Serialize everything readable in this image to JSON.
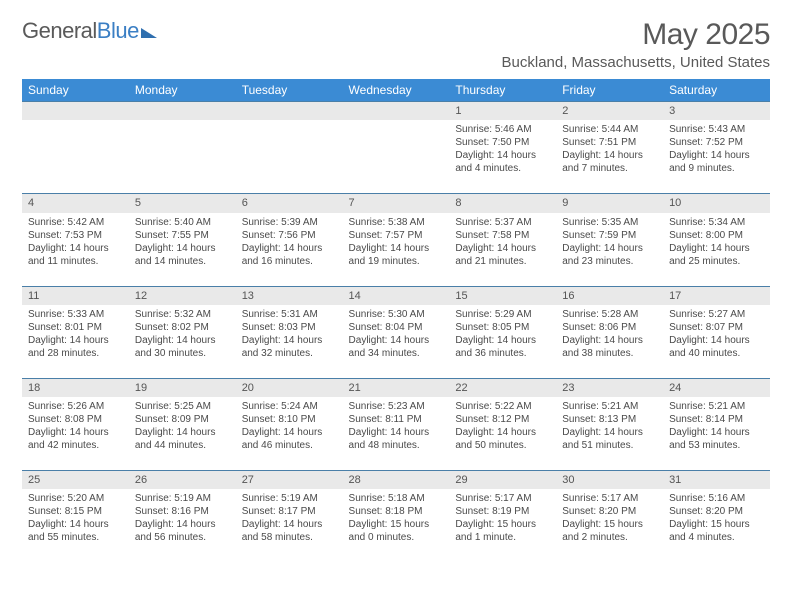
{
  "logo": {
    "part1": "General",
    "part2": "Blue"
  },
  "title": "May 2025",
  "location": "Buckland, Massachusetts, United States",
  "day_headers": [
    "Sunday",
    "Monday",
    "Tuesday",
    "Wednesday",
    "Thursday",
    "Friday",
    "Saturday"
  ],
  "colors": {
    "header_bg": "#3b8bd4",
    "header_text": "#ffffff",
    "daynum_bg": "#e9e9e9",
    "row_border": "#4a7fa8",
    "text": "#4a4a4a",
    "title_text": "#595959"
  },
  "weeks": [
    {
      "nums": [
        "",
        "",
        "",
        "",
        "1",
        "2",
        "3"
      ],
      "cells": [
        null,
        null,
        null,
        null,
        {
          "sunrise": "Sunrise: 5:46 AM",
          "sunset": "Sunset: 7:50 PM",
          "daylight": "Daylight: 14 hours and 4 minutes."
        },
        {
          "sunrise": "Sunrise: 5:44 AM",
          "sunset": "Sunset: 7:51 PM",
          "daylight": "Daylight: 14 hours and 7 minutes."
        },
        {
          "sunrise": "Sunrise: 5:43 AM",
          "sunset": "Sunset: 7:52 PM",
          "daylight": "Daylight: 14 hours and 9 minutes."
        }
      ]
    },
    {
      "nums": [
        "4",
        "5",
        "6",
        "7",
        "8",
        "9",
        "10"
      ],
      "cells": [
        {
          "sunrise": "Sunrise: 5:42 AM",
          "sunset": "Sunset: 7:53 PM",
          "daylight": "Daylight: 14 hours and 11 minutes."
        },
        {
          "sunrise": "Sunrise: 5:40 AM",
          "sunset": "Sunset: 7:55 PM",
          "daylight": "Daylight: 14 hours and 14 minutes."
        },
        {
          "sunrise": "Sunrise: 5:39 AM",
          "sunset": "Sunset: 7:56 PM",
          "daylight": "Daylight: 14 hours and 16 minutes."
        },
        {
          "sunrise": "Sunrise: 5:38 AM",
          "sunset": "Sunset: 7:57 PM",
          "daylight": "Daylight: 14 hours and 19 minutes."
        },
        {
          "sunrise": "Sunrise: 5:37 AM",
          "sunset": "Sunset: 7:58 PM",
          "daylight": "Daylight: 14 hours and 21 minutes."
        },
        {
          "sunrise": "Sunrise: 5:35 AM",
          "sunset": "Sunset: 7:59 PM",
          "daylight": "Daylight: 14 hours and 23 minutes."
        },
        {
          "sunrise": "Sunrise: 5:34 AM",
          "sunset": "Sunset: 8:00 PM",
          "daylight": "Daylight: 14 hours and 25 minutes."
        }
      ]
    },
    {
      "nums": [
        "11",
        "12",
        "13",
        "14",
        "15",
        "16",
        "17"
      ],
      "cells": [
        {
          "sunrise": "Sunrise: 5:33 AM",
          "sunset": "Sunset: 8:01 PM",
          "daylight": "Daylight: 14 hours and 28 minutes."
        },
        {
          "sunrise": "Sunrise: 5:32 AM",
          "sunset": "Sunset: 8:02 PM",
          "daylight": "Daylight: 14 hours and 30 minutes."
        },
        {
          "sunrise": "Sunrise: 5:31 AM",
          "sunset": "Sunset: 8:03 PM",
          "daylight": "Daylight: 14 hours and 32 minutes."
        },
        {
          "sunrise": "Sunrise: 5:30 AM",
          "sunset": "Sunset: 8:04 PM",
          "daylight": "Daylight: 14 hours and 34 minutes."
        },
        {
          "sunrise": "Sunrise: 5:29 AM",
          "sunset": "Sunset: 8:05 PM",
          "daylight": "Daylight: 14 hours and 36 minutes."
        },
        {
          "sunrise": "Sunrise: 5:28 AM",
          "sunset": "Sunset: 8:06 PM",
          "daylight": "Daylight: 14 hours and 38 minutes."
        },
        {
          "sunrise": "Sunrise: 5:27 AM",
          "sunset": "Sunset: 8:07 PM",
          "daylight": "Daylight: 14 hours and 40 minutes."
        }
      ]
    },
    {
      "nums": [
        "18",
        "19",
        "20",
        "21",
        "22",
        "23",
        "24"
      ],
      "cells": [
        {
          "sunrise": "Sunrise: 5:26 AM",
          "sunset": "Sunset: 8:08 PM",
          "daylight": "Daylight: 14 hours and 42 minutes."
        },
        {
          "sunrise": "Sunrise: 5:25 AM",
          "sunset": "Sunset: 8:09 PM",
          "daylight": "Daylight: 14 hours and 44 minutes."
        },
        {
          "sunrise": "Sunrise: 5:24 AM",
          "sunset": "Sunset: 8:10 PM",
          "daylight": "Daylight: 14 hours and 46 minutes."
        },
        {
          "sunrise": "Sunrise: 5:23 AM",
          "sunset": "Sunset: 8:11 PM",
          "daylight": "Daylight: 14 hours and 48 minutes."
        },
        {
          "sunrise": "Sunrise: 5:22 AM",
          "sunset": "Sunset: 8:12 PM",
          "daylight": "Daylight: 14 hours and 50 minutes."
        },
        {
          "sunrise": "Sunrise: 5:21 AM",
          "sunset": "Sunset: 8:13 PM",
          "daylight": "Daylight: 14 hours and 51 minutes."
        },
        {
          "sunrise": "Sunrise: 5:21 AM",
          "sunset": "Sunset: 8:14 PM",
          "daylight": "Daylight: 14 hours and 53 minutes."
        }
      ]
    },
    {
      "nums": [
        "25",
        "26",
        "27",
        "28",
        "29",
        "30",
        "31"
      ],
      "cells": [
        {
          "sunrise": "Sunrise: 5:20 AM",
          "sunset": "Sunset: 8:15 PM",
          "daylight": "Daylight: 14 hours and 55 minutes."
        },
        {
          "sunrise": "Sunrise: 5:19 AM",
          "sunset": "Sunset: 8:16 PM",
          "daylight": "Daylight: 14 hours and 56 minutes."
        },
        {
          "sunrise": "Sunrise: 5:19 AM",
          "sunset": "Sunset: 8:17 PM",
          "daylight": "Daylight: 14 hours and 58 minutes."
        },
        {
          "sunrise": "Sunrise: 5:18 AM",
          "sunset": "Sunset: 8:18 PM",
          "daylight": "Daylight: 15 hours and 0 minutes."
        },
        {
          "sunrise": "Sunrise: 5:17 AM",
          "sunset": "Sunset: 8:19 PM",
          "daylight": "Daylight: 15 hours and 1 minute."
        },
        {
          "sunrise": "Sunrise: 5:17 AM",
          "sunset": "Sunset: 8:20 PM",
          "daylight": "Daylight: 15 hours and 2 minutes."
        },
        {
          "sunrise": "Sunrise: 5:16 AM",
          "sunset": "Sunset: 8:20 PM",
          "daylight": "Daylight: 15 hours and 4 minutes."
        }
      ]
    }
  ]
}
